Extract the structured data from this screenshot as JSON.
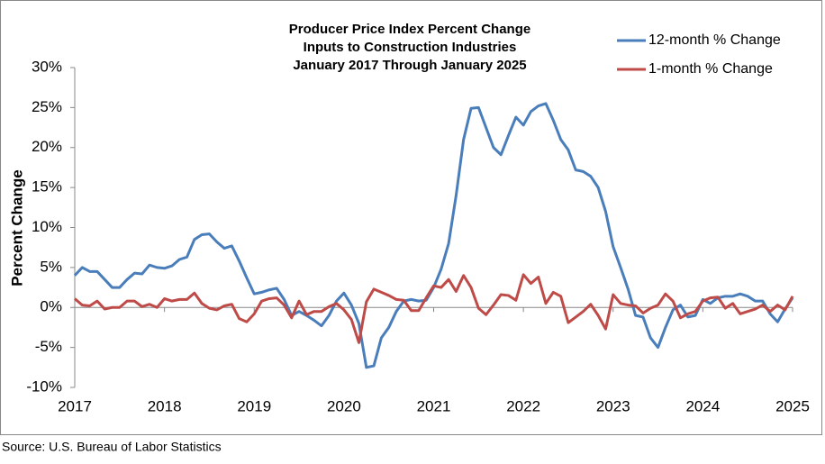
{
  "chart_data": {
    "type": "line",
    "title": [
      "Producer Price Index Percent Change",
      "Inputs to Construction Industries",
      "January 2017 Through January 2025"
    ],
    "y_label": "Percent Change",
    "source": "Source: U.S. Bureau of Labor Statistics",
    "legend": "top-right",
    "grid": false,
    "categories": [
      "2017",
      null,
      null,
      null,
      null,
      null,
      null,
      null,
      null,
      null,
      null,
      null,
      "2018",
      null,
      null,
      null,
      null,
      null,
      null,
      null,
      null,
      null,
      null,
      null,
      "2019",
      null,
      null,
      null,
      null,
      null,
      null,
      null,
      null,
      null,
      null,
      null,
      "2020",
      null,
      null,
      null,
      null,
      null,
      null,
      null,
      null,
      null,
      null,
      null,
      "2021",
      null,
      null,
      null,
      null,
      null,
      null,
      null,
      null,
      null,
      null,
      null,
      "2022",
      null,
      null,
      null,
      null,
      null,
      null,
      null,
      null,
      null,
      null,
      null,
      "2023",
      null,
      null,
      null,
      null,
      null,
      null,
      null,
      null,
      null,
      null,
      null,
      "2024",
      null,
      null,
      null,
      null,
      null,
      null,
      null,
      null,
      null,
      null,
      null,
      "2025"
    ],
    "series": [
      {
        "name": "12-month % Change",
        "color": "#4a7ebb",
        "values": [
          4.0,
          5.0,
          4.5,
          4.5,
          3.5,
          2.5,
          2.5,
          3.5,
          4.3,
          4.2,
          5.3,
          5.0,
          4.9,
          5.2,
          6.0,
          6.3,
          8.5,
          9.1,
          9.2,
          8.2,
          7.4,
          7.7,
          5.8,
          3.7,
          1.7,
          1.9,
          2.2,
          2.4,
          1.0,
          -1.0,
          -0.5,
          -1.0,
          -1.6,
          -2.3,
          -1.0,
          0.8,
          1.8,
          0.3,
          -2.0,
          -7.5,
          -7.3,
          -3.8,
          -2.5,
          -0.5,
          0.8,
          1.0,
          0.8,
          0.9,
          2.5,
          4.8,
          8.0,
          14.0,
          21.0,
          24.9,
          25.0,
          22.5,
          20.0,
          19.1,
          21.5,
          23.8,
          22.8,
          24.5,
          25.2,
          25.5,
          23.4,
          21.0,
          19.7,
          17.2,
          17.0,
          16.4,
          15.0,
          12.0,
          7.6,
          5.0,
          2.3,
          -1.0,
          -1.2,
          -3.8,
          -5.0,
          -2.5,
          -0.3,
          0.3,
          -1.2,
          -1.0,
          1.0,
          0.5,
          1.2,
          1.4,
          1.4,
          1.7,
          1.4,
          0.8,
          0.8,
          -0.8,
          -1.8,
          -0.2,
          1.2
        ]
      },
      {
        "name": "1-month % Change",
        "color": "#be4b48",
        "values": [
          1.1,
          0.3,
          0.2,
          0.8,
          -0.2,
          0,
          0,
          0.8,
          0.8,
          0.1,
          0.4,
          0,
          1.1,
          0.8,
          1.0,
          1.0,
          1.8,
          0.5,
          -0.1,
          -0.3,
          0.2,
          0.4,
          -1.4,
          -1.8,
          -0.8,
          0.8,
          1.1,
          1.2,
          0.3,
          -1.3,
          0.8,
          -0.9,
          -0.5,
          -0.5,
          0.1,
          0.5,
          -0.3,
          -1.5,
          -4.4,
          0.7,
          2.3,
          1.9,
          1.5,
          1.0,
          0.9,
          -0.4,
          -0.4,
          1.2,
          2.7,
          2.5,
          3.5,
          2.0,
          4.0,
          2.5,
          -0.1,
          -0.9,
          0.3,
          1.6,
          1.5,
          0.9,
          4.1,
          3.0,
          3.8,
          0.5,
          1.9,
          1.4,
          -1.9,
          -1.2,
          -0.5,
          0.4,
          -1.0,
          -2.7,
          1.6,
          0.5,
          0.3,
          0.2,
          -0.7,
          -0.1,
          0.3,
          1.7,
          0.8,
          -1.3,
          -0.8,
          -0.5,
          0.8,
          1.2,
          1.3,
          -0.1,
          0.5,
          -0.8,
          -0.5,
          -0.2,
          0.3,
          -0.5,
          0.3,
          -0.3,
          1.4
        ]
      }
    ],
    "ylim": [
      -10,
      30
    ],
    "yticks": [
      {
        "value": -10,
        "label": "-10%"
      },
      {
        "value": -5,
        "label": "-5%"
      },
      {
        "value": 0,
        "label": "0%"
      },
      {
        "value": 5,
        "label": "5%"
      },
      {
        "value": 10,
        "label": "10%"
      },
      {
        "value": 15,
        "label": "15%"
      },
      {
        "value": 20,
        "label": "20%"
      },
      {
        "value": 25,
        "label": "25%"
      },
      {
        "value": 30,
        "label": "30%"
      }
    ]
  }
}
